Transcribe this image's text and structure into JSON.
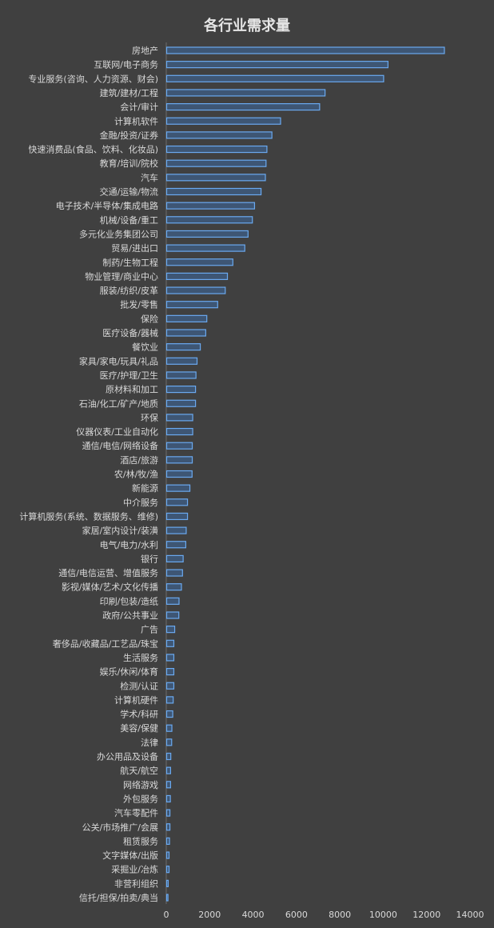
{
  "colors": {
    "background": "#404040",
    "bar_fill": "#3e5674",
    "bar_stroke": "#6aa9f0",
    "text": "#d9d9d9",
    "axis_line": "#6b6b6b"
  },
  "chart_data": {
    "type": "bar",
    "orientation": "horizontal",
    "title": "各行业需求量",
    "xlabel": "",
    "ylabel": "",
    "xlim": [
      0,
      14000
    ],
    "xticks": [
      0,
      2000,
      4000,
      6000,
      8000,
      10000,
      12000,
      14000
    ],
    "grid": false,
    "legend": "none",
    "categories": [
      "房地产",
      "互联网/电子商务",
      "专业服务(咨询、人力资源、财会)",
      "建筑/建材/工程",
      "会计/审计",
      "计算机软件",
      "金融/投资/证券",
      "快速消费品(食品、饮料、化妆品)",
      "教育/培训/院校",
      "汽车",
      "交通/运输/物流",
      "电子技术/半导体/集成电路",
      "机械/设备/重工",
      "多元化业务集团公司",
      "贸易/进出口",
      "制药/生物工程",
      "物业管理/商业中心",
      "服装/纺织/皮革",
      "批发/零售",
      "保险",
      "医疗设备/器械",
      "餐饮业",
      "家具/家电/玩具/礼品",
      "医疗/护理/卫生",
      "原材料和加工",
      "石油/化工/矿产/地质",
      "环保",
      "仪器仪表/工业自动化",
      "通信/电信/网络设备",
      "酒店/旅游",
      "农/林/牧/渔",
      "新能源",
      "中介服务",
      "计算机服务(系统、数据服务、维修)",
      "家居/室内设计/装潢",
      "电气/电力/水利",
      "银行",
      "通信/电信运营、增值服务",
      "影视/媒体/艺术/文化传播",
      "印刷/包装/造纸",
      "政府/公共事业",
      "广告",
      "奢侈品/收藏品/工艺品/珠宝",
      "生活服务",
      "娱乐/休闲/体育",
      "检测/认证",
      "计算机硬件",
      "学术/科研",
      "美容/保健",
      "法律",
      "办公用品及设备",
      "航天/航空",
      "网络游戏",
      "外包服务",
      "汽车零配件",
      "公关/市场推广/会展",
      "租赁服务",
      "文字媒体/出版",
      "采掘业/冶炼",
      "非营利组织",
      "信托/担保/拍卖/典当"
    ],
    "values": [
      12800,
      10200,
      10000,
      7300,
      7050,
      5250,
      4850,
      4620,
      4580,
      4550,
      4350,
      4050,
      3950,
      3750,
      3600,
      3050,
      2800,
      2700,
      2350,
      1850,
      1800,
      1550,
      1400,
      1350,
      1330,
      1330,
      1200,
      1200,
      1180,
      1180,
      1170,
      1070,
      960,
      960,
      900,
      880,
      760,
      730,
      680,
      570,
      560,
      370,
      330,
      330,
      330,
      330,
      300,
      280,
      240,
      230,
      190,
      180,
      180,
      170,
      150,
      150,
      130,
      110,
      110,
      70,
      60
    ]
  }
}
